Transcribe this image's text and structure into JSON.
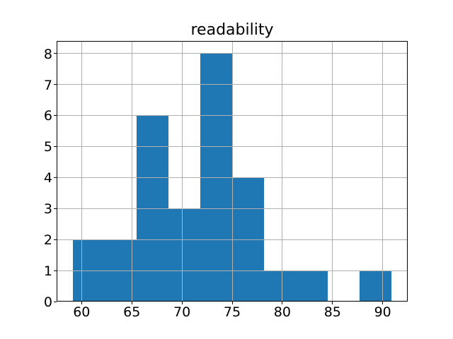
{
  "chart_data": {
    "type": "bar",
    "subtype": "histogram",
    "title": "readability",
    "xlabel": "",
    "ylabel": "",
    "bin_edges": [
      59.1,
      62.28,
      65.46,
      68.64,
      71.82,
      75.0,
      78.18,
      81.36,
      84.54,
      87.72,
      90.9
    ],
    "counts": [
      2,
      2,
      6,
      3,
      8,
      4,
      1,
      1,
      0,
      1
    ],
    "x_ticks": [
      60,
      65,
      70,
      75,
      80,
      85,
      90
    ],
    "y_ticks": [
      0,
      1,
      2,
      3,
      4,
      5,
      6,
      7,
      8
    ],
    "xlim": [
      57.51,
      92.49
    ],
    "ylim": [
      0,
      8.4
    ],
    "grid": true,
    "legend": false,
    "bar_color": "#1f77b4",
    "grid_color": "#b0b0b0",
    "axis_color": "#000000",
    "background": "#ffffff"
  }
}
